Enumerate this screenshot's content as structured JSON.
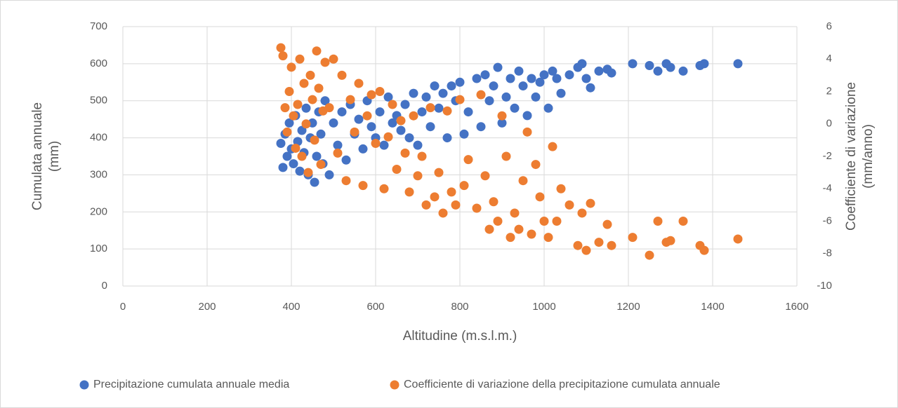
{
  "chart_data": {
    "type": "scatter",
    "xlabel": "Altitudine (m.s.l.m.)",
    "ylabel": [
      "Cumulata annuale",
      "(mm)"
    ],
    "y2label": [
      "Coefficiente di variazione",
      "(mm/anno)"
    ],
    "xlim": [
      0,
      1600
    ],
    "xticks": [
      0,
      200,
      400,
      600,
      800,
      1000,
      1200,
      1400,
      1600
    ],
    "ylim": [
      0,
      700
    ],
    "yticks": [
      0,
      100,
      200,
      300,
      400,
      500,
      600,
      700
    ],
    "y2lim": [
      -10,
      6
    ],
    "y2ticks": [
      -10,
      -8,
      -6,
      -4,
      -2,
      0,
      2,
      4,
      6
    ],
    "grid": true,
    "legend": "bottom",
    "x": [
      375,
      380,
      385,
      390,
      395,
      400,
      405,
      410,
      415,
      420,
      425,
      430,
      435,
      440,
      445,
      450,
      455,
      460,
      465,
      470,
      475,
      480,
      490,
      500,
      510,
      520,
      530,
      540,
      550,
      560,
      570,
      580,
      590,
      600,
      610,
      620,
      630,
      640,
      650,
      660,
      670,
      680,
      690,
      700,
      710,
      720,
      730,
      740,
      750,
      760,
      770,
      780,
      790,
      800,
      810,
      820,
      840,
      850,
      860,
      870,
      880,
      890,
      900,
      910,
      920,
      930,
      940,
      950,
      960,
      970,
      980,
      990,
      1000,
      1010,
      1020,
      1030,
      1040,
      1060,
      1080,
      1090,
      1100,
      1110,
      1130,
      1150,
      1160,
      1210,
      1250,
      1270,
      1290,
      1300,
      1330,
      1370,
      1380,
      1460
    ],
    "series": [
      {
        "name": "Precipitazione cumulata annuale media",
        "color": "#4472c4",
        "values": [
          385,
          320,
          410,
          350,
          440,
          370,
          330,
          460,
          390,
          310,
          420,
          360,
          480,
          300,
          400,
          440,
          280,
          350,
          470,
          410,
          330,
          500,
          300,
          440,
          380,
          470,
          340,
          490,
          410,
          450,
          370,
          500,
          430,
          400,
          470,
          380,
          510,
          440,
          460,
          420,
          490,
          400,
          520,
          380,
          470,
          510,
          430,
          540,
          480,
          520,
          400,
          540,
          500,
          550,
          410,
          470,
          560,
          430,
          570,
          500,
          540,
          590,
          440,
          510,
          560,
          480,
          580,
          540,
          460,
          560,
          510,
          550,
          570,
          480,
          580,
          560,
          520,
          570,
          590,
          600,
          560,
          535,
          580,
          585,
          575,
          600,
          595,
          580,
          600,
          590,
          580,
          595,
          600,
          600
        ]
      },
      {
        "name": "Coefficiente di variazione della precipitazione cumulata annuale",
        "color": "#ed7d31",
        "axis": "y2",
        "values": [
          4.7,
          4.2,
          1.0,
          -0.5,
          2.0,
          3.5,
          0.5,
          -1.5,
          1.2,
          4.0,
          -2.0,
          2.5,
          0.0,
          -3.0,
          3.0,
          1.5,
          -1.0,
          4.5,
          2.2,
          -2.5,
          0.8,
          3.8,
          1.0,
          4.0,
          -1.8,
          3.0,
          -3.5,
          1.5,
          -0.5,
          2.5,
          -3.8,
          0.5,
          1.8,
          -1.2,
          2.0,
          -4.0,
          -0.8,
          1.2,
          -2.8,
          0.2,
          -1.8,
          -4.2,
          0.5,
          -3.2,
          -2.0,
          -5.0,
          1.0,
          -4.5,
          -3.0,
          -5.5,
          0.8,
          -4.2,
          -5.0,
          1.5,
          -3.8,
          -2.2,
          -5.2,
          1.8,
          -3.2,
          -6.5,
          -4.8,
          -6.0,
          0.5,
          -2.0,
          -7.0,
          -5.5,
          -6.5,
          -3.5,
          -0.5,
          -6.8,
          -2.5,
          -4.5,
          -6.0,
          -7.0,
          -1.4,
          -6.0,
          -4.0,
          -5.0,
          -7.5,
          -5.5,
          -7.8,
          -4.9,
          -7.3,
          -6.2,
          -7.5,
          -7.0,
          -8.1,
          -6.0,
          -7.3,
          -7.2,
          -6.0,
          -7.5,
          -7.8,
          -7.1
        ]
      }
    ]
  }
}
